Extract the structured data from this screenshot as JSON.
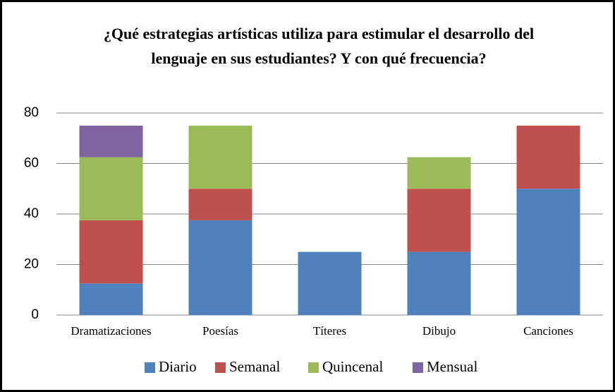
{
  "chart_data": {
    "type": "stacked_bar",
    "title": "¿Qué estrategias artísticas utiliza para estimular el desarrollo del lenguaje en sus estudiantes? Y con qué frecuencia?",
    "categories": [
      "Dramatizaciones",
      "Poesías",
      "Títeres",
      "Dibujo",
      "Canciones"
    ],
    "series": [
      {
        "name": "Diario",
        "color": "#4f81bd",
        "values": [
          12.5,
          37.5,
          25,
          25,
          50
        ]
      },
      {
        "name": "Semanal",
        "color": "#c0504d",
        "values": [
          25,
          12.5,
          0,
          25,
          25
        ]
      },
      {
        "name": "Quincenal",
        "color": "#9bbb59",
        "values": [
          25,
          25,
          0,
          12.5,
          0
        ]
      },
      {
        "name": "Mensual",
        "color": "#8064a2",
        "values": [
          12.5,
          0,
          0,
          0,
          0
        ]
      }
    ],
    "ylim": [
      0,
      80
    ],
    "yticks": [
      0,
      20,
      40,
      60,
      80
    ],
    "grid": true,
    "legend": "bottom"
  }
}
